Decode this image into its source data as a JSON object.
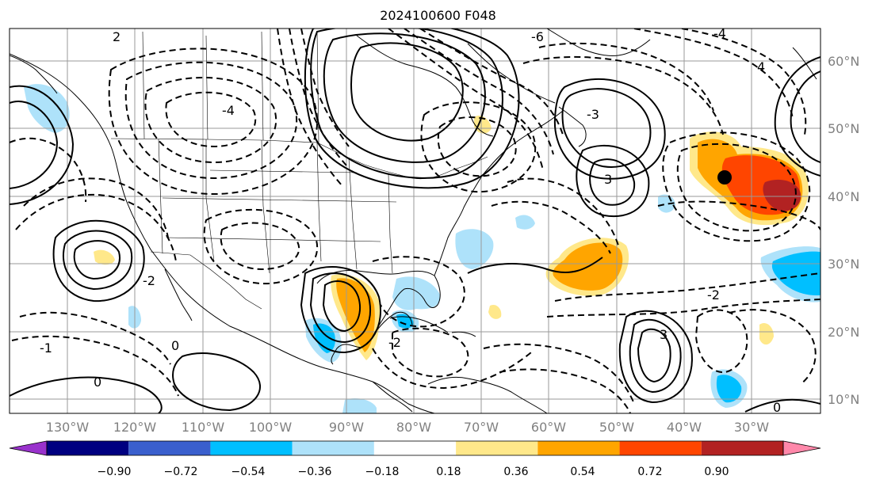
{
  "title": "2024100600 F048",
  "map": {
    "lon_labels": [
      "130°W",
      "120°W",
      "110°W",
      "100°W",
      "90°W",
      "80°W",
      "70°W",
      "60°W",
      "50°W",
      "40°W",
      "30°W"
    ],
    "lat_labels": [
      "60°N",
      "50°N",
      "40°N",
      "30°N",
      "20°N",
      "10°N"
    ],
    "marker": "black-dot",
    "contour_labels": [
      "-6",
      "-4",
      "-4",
      "-2",
      "-2",
      "-2",
      "-1",
      "0",
      "0",
      "0",
      "2",
      "3",
      "3",
      "-3",
      "4"
    ]
  },
  "colorbar": {
    "labels": [
      "−0.90",
      "−0.72",
      "−0.54",
      "−0.36",
      "−0.18",
      "0.18",
      "0.36",
      "0.54",
      "0.72",
      "0.90"
    ],
    "colors": [
      "#9932cc",
      "#000080",
      "#3a5fcd",
      "#00bfff",
      "#aee2fa",
      "#ffffff",
      "#ffe88a",
      "#ffa500",
      "#ff4500",
      "#b22222",
      "#ff88aa"
    ]
  }
}
